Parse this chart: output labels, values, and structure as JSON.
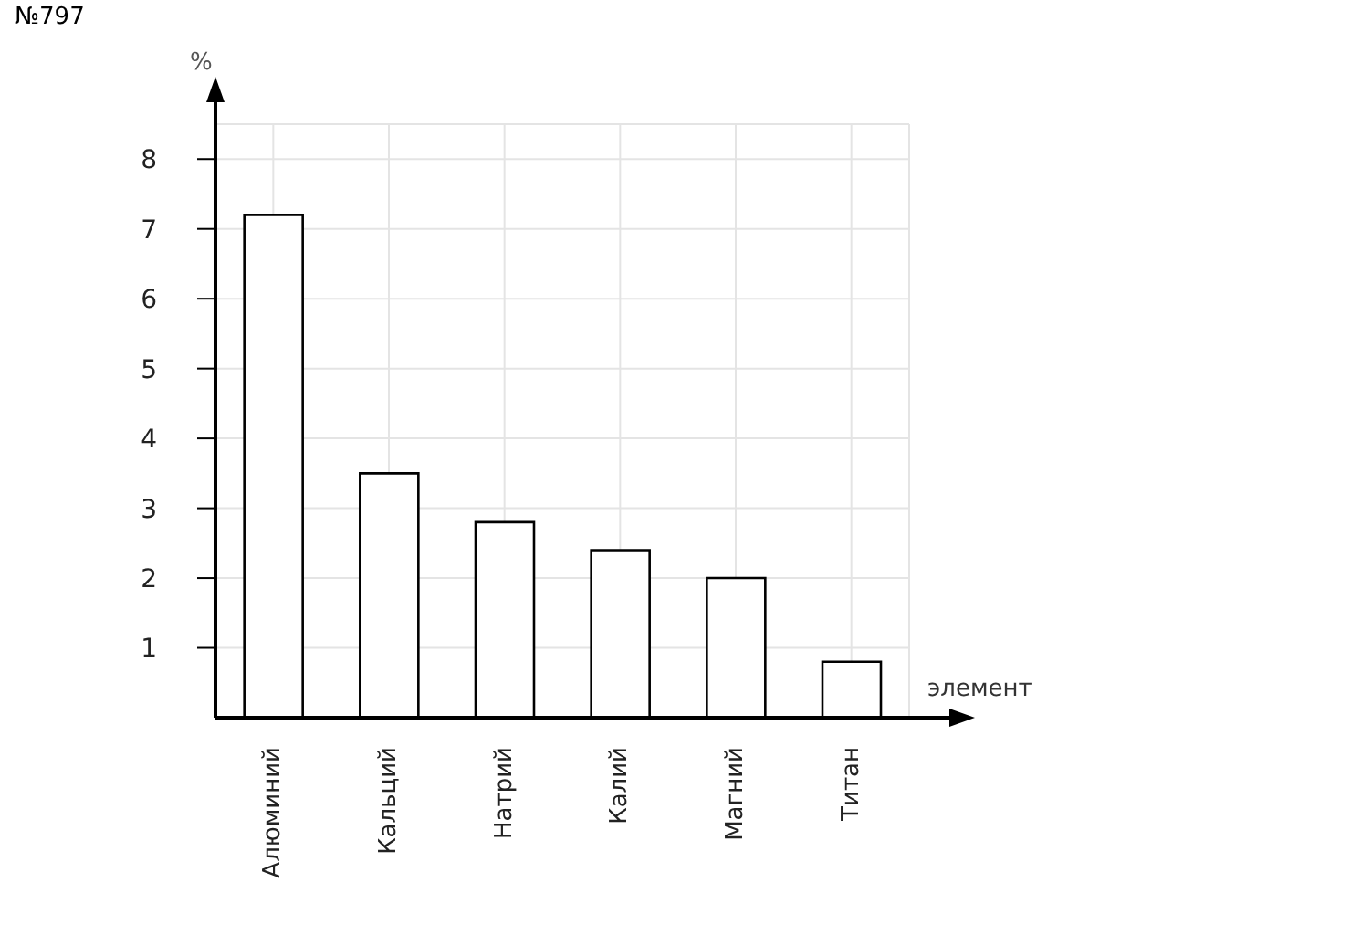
{
  "chart_data": {
    "type": "bar",
    "title": "№797",
    "xlabel": "элемент",
    "ylabel": "%",
    "categories": [
      "Алюминий",
      "Кальций",
      "Натрий",
      "Калий",
      "Магний",
      "Титан"
    ],
    "values": [
      7.2,
      3.5,
      2.8,
      2.4,
      2.0,
      0.8
    ],
    "color": "#ffffff",
    "ylim": [
      0,
      8.5
    ],
    "yticks": [
      1,
      2,
      3,
      4,
      5,
      6,
      7,
      8
    ],
    "grid": true
  }
}
